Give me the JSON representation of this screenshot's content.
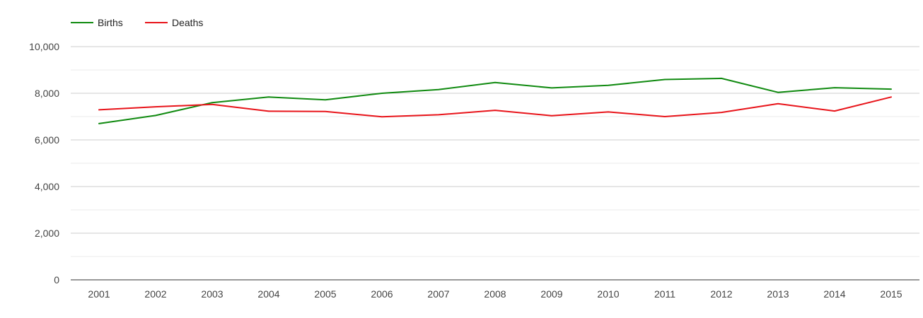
{
  "chart_data": {
    "type": "line",
    "title": "",
    "xlabel": "",
    "ylabel": "",
    "x": [
      "2001",
      "2002",
      "2003",
      "2004",
      "2005",
      "2006",
      "2007",
      "2008",
      "2009",
      "2010",
      "2011",
      "2012",
      "2013",
      "2014",
      "2015"
    ],
    "ylim": [
      0,
      10000
    ],
    "y_ticks": [
      "0",
      "2,000",
      "4,000",
      "6,000",
      "8,000",
      "10,000"
    ],
    "y_tick_values": [
      0,
      2000,
      4000,
      6000,
      8000,
      10000
    ],
    "grid": true,
    "legend_position": "top-left",
    "series": [
      {
        "name": "Births",
        "color": "#108a10",
        "values": [
          6700,
          7050,
          7600,
          7840,
          7720,
          8000,
          8160,
          8460,
          8230,
          8340,
          8590,
          8640,
          8040,
          8240,
          8180
        ]
      },
      {
        "name": "Deaths",
        "color": "#e8141a",
        "values": [
          7290,
          7420,
          7520,
          7230,
          7220,
          6990,
          7080,
          7270,
          7040,
          7200,
          7000,
          7180,
          7550,
          7240,
          7840
        ]
      }
    ]
  }
}
